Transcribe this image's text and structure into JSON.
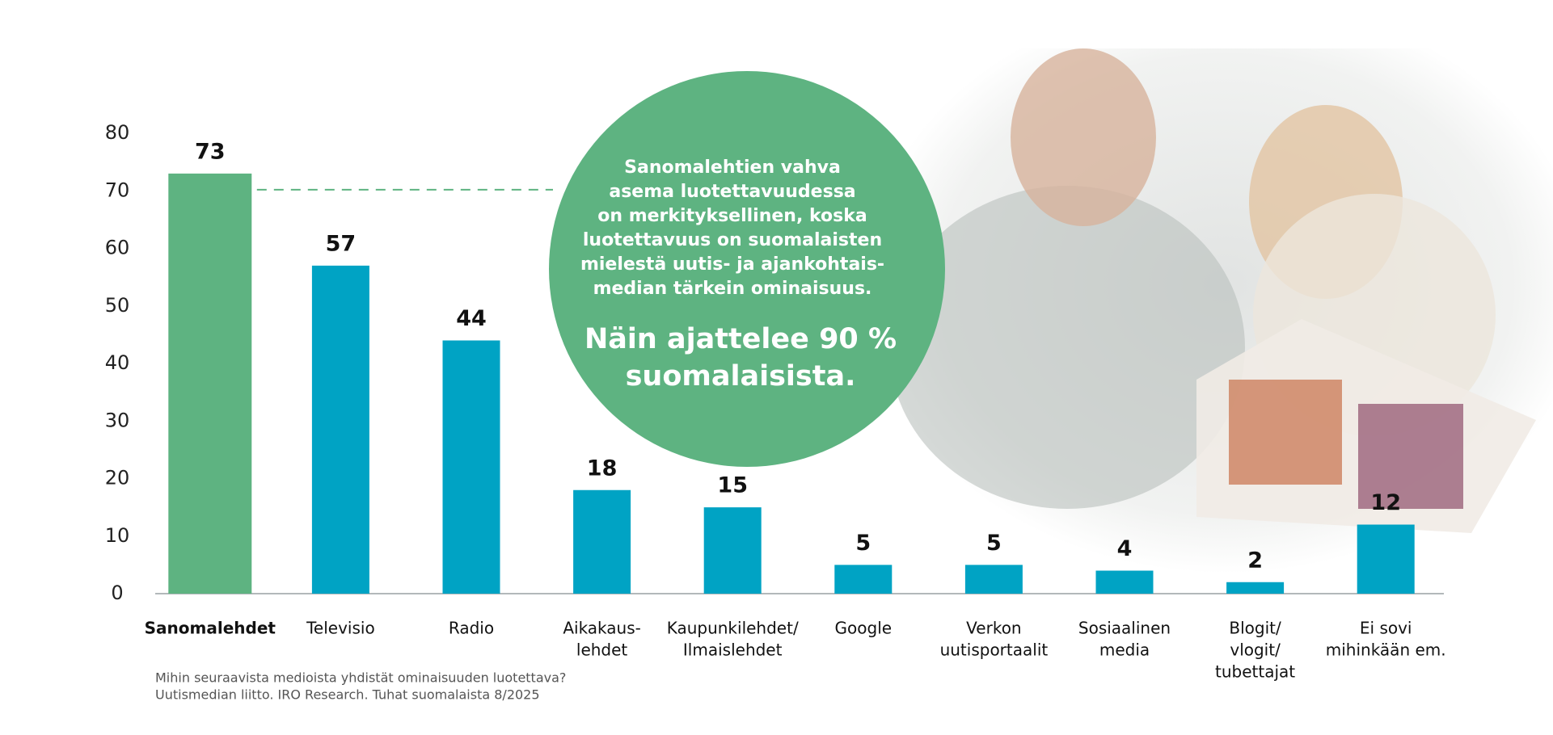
{
  "chart_data": {
    "type": "bar",
    "categories": [
      [
        "Sanomalehdet"
      ],
      [
        "Televisio"
      ],
      [
        "Radio"
      ],
      [
        "Aikakaus-",
        "lehdet"
      ],
      [
        "Kaupunkilehdet/",
        "Ilmaislehdet"
      ],
      [
        "Google"
      ],
      [
        "Verkon",
        "uutisportaalit"
      ],
      [
        "Sosiaalinen",
        "media"
      ],
      [
        "Blogit/",
        "vlogit/",
        "tubettajat"
      ],
      [
        "Ei sovi",
        "mihinkään em."
      ]
    ],
    "values": [
      73,
      57,
      44,
      18,
      15,
      5,
      5,
      4,
      2,
      12
    ],
    "colors": [
      "#5eb381",
      "#00a3c4",
      "#00a3c4",
      "#00a3c4",
      "#00a3c4",
      "#00a3c4",
      "#00a3c4",
      "#00a3c4",
      "#00a3c4",
      "#00a3c4"
    ],
    "ylim": [
      0,
      80
    ],
    "yticks": [
      0,
      10,
      20,
      30,
      40,
      50,
      60,
      70,
      80
    ],
    "grid": false,
    "callout": [
      "Sanomalehtien vahva",
      "asema luotettavuudessa",
      "on merkityksellinen, koska",
      "luotettavuus on suomalaisten",
      "mielestä uutis- ja ajankohtais-",
      "median tärkein ominaisuus."
    ],
    "highlight": [
      "Näin ajattelee 90 %",
      "suomalaisista."
    ],
    "footnote": [
      "Mihin seuraavista medioista yhdistät ominaisuuden luotettava?",
      "Uutismedian liitto. IRO Research. Tuhat suomalaista 8/2025"
    ]
  }
}
